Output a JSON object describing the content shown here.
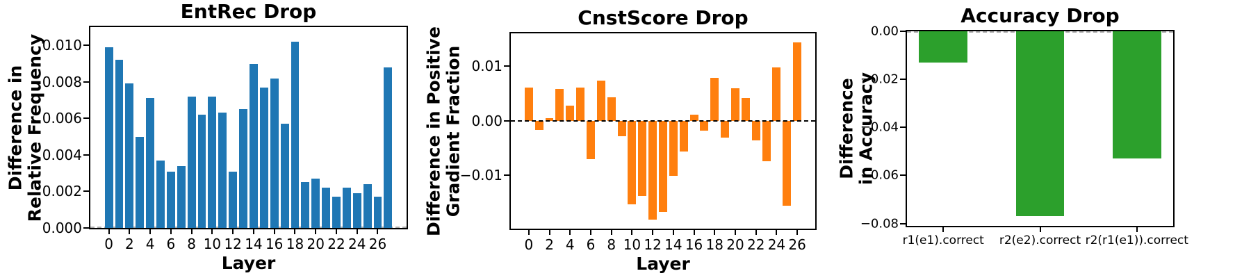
{
  "figure": {
    "background": "#ffffff"
  },
  "chart_data": [
    {
      "type": "bar",
      "title": "EntRec Drop",
      "xlabel": "Layer",
      "ylabel_lines": [
        "Difference in",
        "Relative Frequency"
      ],
      "bar_color": "#1f77b4",
      "categories": [
        0,
        1,
        2,
        3,
        4,
        5,
        6,
        7,
        8,
        9,
        10,
        11,
        12,
        13,
        14,
        15,
        16,
        17,
        18,
        19,
        20,
        21,
        22,
        23,
        24,
        25,
        26,
        27
      ],
      "values": [
        0.0099,
        0.0092,
        0.0079,
        0.005,
        0.0071,
        0.0037,
        0.0031,
        0.0034,
        0.0072,
        0.0062,
        0.0072,
        0.0063,
        0.0031,
        0.0065,
        0.009,
        0.0077,
        0.0082,
        0.0057,
        0.0102,
        0.0025,
        0.0027,
        0.0022,
        0.0017,
        0.0022,
        0.0019,
        0.0024,
        0.0017,
        0.0088
      ],
      "ylim": [
        0,
        0.011
      ],
      "ytick_values": [
        0.0,
        0.002,
        0.004,
        0.006,
        0.008,
        0.01
      ],
      "ytick_labels": [
        "0.000",
        "0.002",
        "0.004",
        "0.006",
        "0.008",
        "0.010"
      ],
      "xtick_values": [
        0,
        2,
        4,
        6,
        8,
        10,
        12,
        14,
        16,
        18,
        20,
        22,
        24,
        26
      ],
      "xtick_labels": [
        "0",
        "2",
        "4",
        "6",
        "8",
        "10",
        "12",
        "14",
        "16",
        "18",
        "20",
        "22",
        "24",
        "26"
      ],
      "bar_width_frac": 0.8,
      "zero_line": {
        "show": true,
        "color": "#aaaaaa",
        "on_top": false
      },
      "grid": false,
      "legend": null
    },
    {
      "type": "bar",
      "title": "CnstScore Drop",
      "xlabel": "Layer",
      "ylabel_lines": [
        "Difference in Positive",
        "Gradient Fraction"
      ],
      "bar_color": "#ff7f0e",
      "categories": [
        0,
        1,
        2,
        3,
        4,
        5,
        6,
        7,
        8,
        9,
        10,
        11,
        12,
        13,
        14,
        15,
        16,
        17,
        18,
        19,
        20,
        21,
        22,
        23,
        24,
        25,
        26
      ],
      "values": [
        0.0061,
        -0.0017,
        0.0005,
        0.0058,
        0.0028,
        0.006,
        -0.007,
        0.0073,
        0.0043,
        -0.0029,
        -0.0154,
        -0.0138,
        -0.0181,
        -0.0168,
        -0.0101,
        -0.0057,
        0.0011,
        -0.0019,
        0.0079,
        -0.0031,
        0.0059,
        0.0042,
        -0.0036,
        -0.0075,
        0.0097,
        -0.0156,
        0.0143
      ],
      "ylim": [
        -0.0198,
        0.016
      ],
      "ytick_values": [
        0.01,
        0.0,
        -0.01
      ],
      "ytick_labels": [
        "0.01",
        "0.00",
        "−0.01"
      ],
      "xtick_values": [
        0,
        2,
        4,
        6,
        8,
        10,
        12,
        14,
        16,
        18,
        20,
        22,
        24,
        26
      ],
      "xtick_labels": [
        "0",
        "2",
        "4",
        "6",
        "8",
        "10",
        "12",
        "14",
        "16",
        "18",
        "20",
        "22",
        "24",
        "26"
      ],
      "bar_width_frac": 0.8,
      "zero_line": {
        "show": true,
        "color": "#000000",
        "on_top": true
      },
      "grid": false,
      "legend": null
    },
    {
      "type": "bar",
      "title": "Accuracy Drop",
      "xlabel": "",
      "ylabel_lines": [
        "Difference",
        "in Accuracy"
      ],
      "bar_color": "#2ca02c",
      "categories": [
        "r1(e1).correct",
        "r2(e2).correct",
        "r2(r1(e1)).correct"
      ],
      "values": [
        -0.013,
        -0.077,
        -0.053
      ],
      "ylim": [
        -0.081,
        0
      ],
      "ytick_values": [
        0.0,
        -0.02,
        -0.04,
        -0.06,
        -0.08
      ],
      "ytick_labels": [
        "0.00",
        "−0.02",
        "−0.04",
        "−0.06",
        "−0.08"
      ],
      "xtick_values": [
        0,
        1,
        2
      ],
      "xtick_labels": [
        "r1(e1).correct",
        "r2(e2).correct",
        "r2(r1(e1)).correct"
      ],
      "bar_width_frac": 0.5,
      "zero_line": {
        "show": true,
        "color": "#aaaaaa",
        "on_top": false
      },
      "grid": false,
      "legend": null
    }
  ]
}
